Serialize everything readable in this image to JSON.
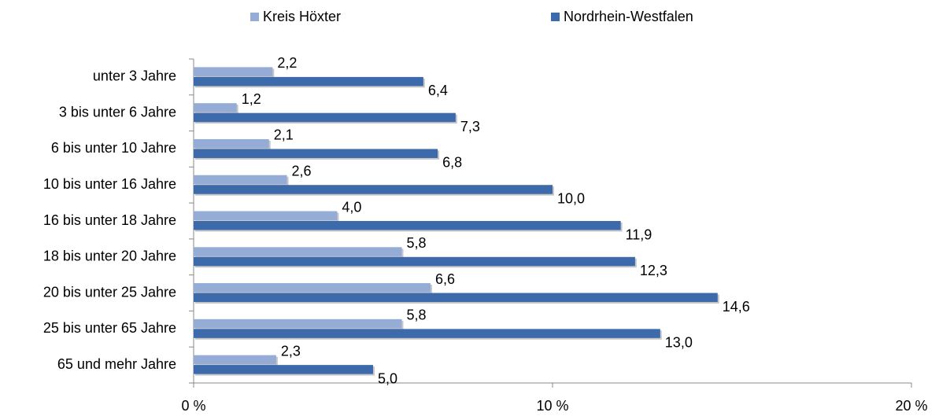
{
  "chart_data": {
    "type": "hbar",
    "categories": [
      "unter 3 Jahre",
      "3 bis unter 6 Jahre",
      "6 bis unter 10 Jahre",
      "10 bis unter 16 Jahre",
      "16 bis unter 18 Jahre",
      "18 bis unter 20 Jahre",
      "20 bis unter 25 Jahre",
      "25 bis unter 65 Jahre",
      "65 und mehr Jahre"
    ],
    "series": [
      {
        "name": "Kreis Höxter",
        "color": "#95acd6",
        "values": [
          2.2,
          1.2,
          2.1,
          2.6,
          4.0,
          5.8,
          6.6,
          5.8,
          2.3
        ],
        "value_labels": [
          "2,2",
          "1,2",
          "2,1",
          "2,6",
          "4,0",
          "5,8",
          "6,6",
          "5,8",
          "2,3"
        ]
      },
      {
        "name": "Nordrhein-Westfalen",
        "color": "#3d6aaa",
        "values": [
          6.4,
          7.3,
          6.8,
          10.0,
          11.9,
          12.3,
          14.6,
          13.0,
          5.0
        ],
        "value_labels": [
          "6,4",
          "7,3",
          "6,8",
          "10,0",
          "11,9",
          "12,3",
          "14,6",
          "13,0",
          "5,0"
        ]
      }
    ],
    "xlim": [
      0,
      20
    ],
    "xticks": [
      {
        "value": 0,
        "label": "0 %"
      },
      {
        "value": 10,
        "label": "10 %"
      },
      {
        "value": 20,
        "label": "20 %"
      }
    ],
    "legend": "top"
  }
}
